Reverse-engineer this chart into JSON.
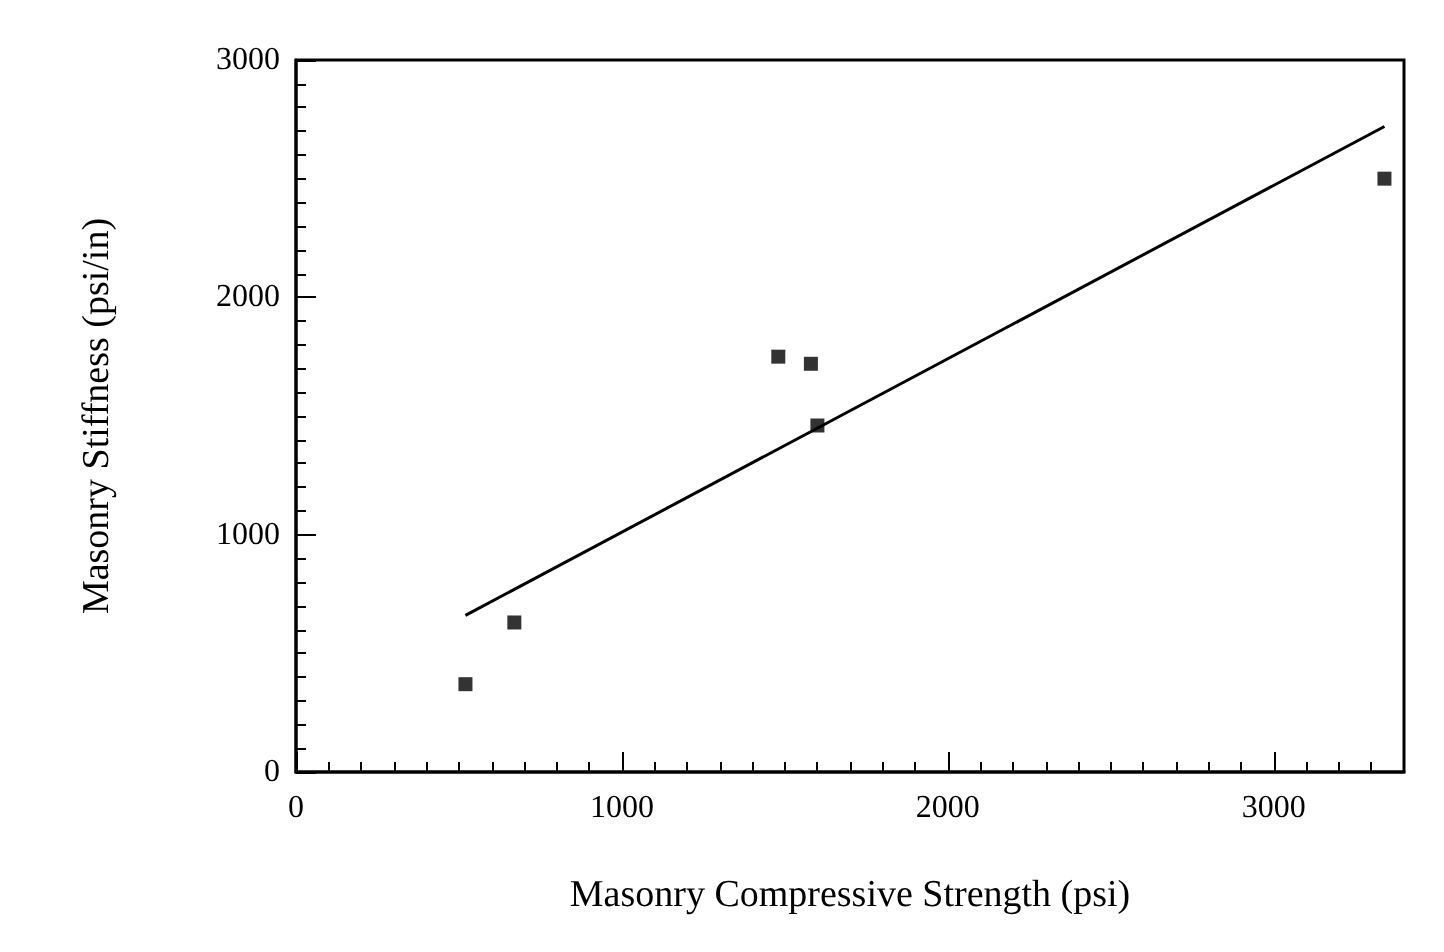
{
  "chart_data": {
    "type": "scatter",
    "xlabel": "Masonry Compressive Strength (psi)",
    "ylabel": "Masonry Stiffness (psi/in)",
    "marker": "square",
    "grid": false,
    "series": [
      {
        "color": "#000000",
        "x": [
          520,
          670,
          1480,
          1580,
          1600,
          3340
        ],
        "values": [
          370,
          630,
          1750,
          1720,
          1460,
          2500
        ]
      },
      {
        "type": "line",
        "color": "#000000",
        "marker": "none",
        "x": [
          520,
          3340
        ],
        "values": [
          660,
          2720
        ]
      }
    ],
    "xlim": [
      0,
      3400
    ],
    "xticks": [
      0,
      1000,
      2000,
      3000
    ],
    "ylim": [
      0,
      3000
    ],
    "yticks": [
      0,
      1000,
      2000,
      3000
    ]
  }
}
